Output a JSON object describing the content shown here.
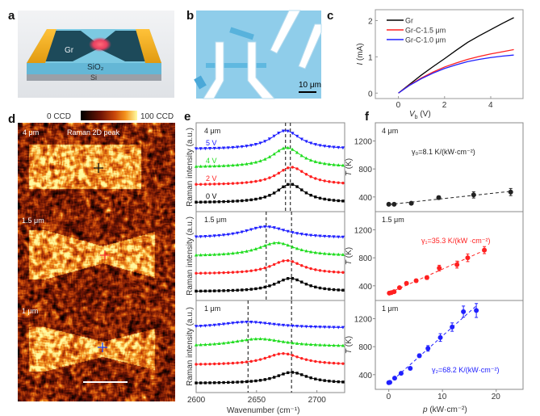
{
  "panel_labels": {
    "a": "a",
    "b": "b",
    "c": "c",
    "d": "d",
    "e": "e",
    "f": "f"
  },
  "panel_a": {
    "graphene_label": "Gr",
    "oxide_label": "SiO₂",
    "substrate_label": "Si"
  },
  "panel_b": {
    "scale_bar_label": "10 μm"
  },
  "panel_d": {
    "colorbar_min_label": "0 CCD",
    "colorbar_max_label": "100 CCD",
    "title": "Raman 2D peak",
    "device_labels": [
      "4 μm",
      "1.5 μm",
      "1 μm"
    ],
    "marker_colors": [
      "#111111",
      "#ff3030",
      "#2040ff"
    ]
  },
  "colors": {
    "0V": "#000000",
    "2V": "#ff2020",
    "4V": "#20dd20",
    "5V": "#2020ff",
    "gamma0": "#222222",
    "gamma1": "#ff2020",
    "gamma2": "#3030ff"
  },
  "chart_data": [
    {
      "panel": "c",
      "type": "line",
      "xlabel_var": "V",
      "xlabel_sub": "b",
      "xlabel_unit": " (V)",
      "ylabel_var": "I",
      "ylabel_unit": " (mA)",
      "xlim": [
        -1,
        5.4
      ],
      "ylim": [
        -0.15,
        2.3
      ],
      "xticks": [
        0,
        2,
        4
      ],
      "yticks": [
        0,
        1,
        2
      ],
      "legend_position": "top-left",
      "x": [
        0,
        0.5,
        1,
        1.5,
        2,
        2.5,
        3,
        3.5,
        4,
        4.5,
        5
      ],
      "series": [
        {
          "name": "Gr",
          "color": "#000000",
          "values": [
            0,
            0.25,
            0.5,
            0.73,
            0.95,
            1.18,
            1.4,
            1.58,
            1.75,
            1.92,
            2.08
          ]
        },
        {
          "name": "Gr-C-1.5 μm",
          "color": "#ff2020",
          "values": [
            0,
            0.23,
            0.42,
            0.58,
            0.72,
            0.83,
            0.93,
            1.01,
            1.08,
            1.14,
            1.2
          ]
        },
        {
          "name": "Gr-C-1.0 μm",
          "color": "#2020ff",
          "values": [
            0,
            0.22,
            0.4,
            0.55,
            0.68,
            0.78,
            0.87,
            0.93,
            0.98,
            1.02,
            1.05
          ]
        }
      ]
    },
    {
      "panel": "e",
      "type": "scatter-line",
      "xlabel": "Wavenumber (cm⁻¹)",
      "ylabel": "Raman intensity (a.u.)",
      "xlim": [
        2600,
        2723
      ],
      "xticks": [
        2600,
        2650,
        2700
      ],
      "ylim": [
        -0.5,
        4.5
      ],
      "subpanels": [
        {
          "label": "4 μm",
          "dashed_lines": [
            2674,
            2678
          ],
          "series": [
            {
              "name": "0 V",
              "color": "#000000",
              "marker": "square",
              "offset": 0,
              "center": 2678,
              "amplitude": 1.05,
              "hwhm": 14
            },
            {
              "name": "2 V",
              "color": "#ff2020",
              "marker": "circle",
              "offset": 1,
              "center": 2679,
              "amplitude": 1.0,
              "hwhm": 15
            },
            {
              "name": "4 V",
              "color": "#20dd20",
              "marker": "triangle-up",
              "offset": 2,
              "center": 2675,
              "amplitude": 1.1,
              "hwhm": 15
            },
            {
              "name": "5 V",
              "color": "#2020ff",
              "marker": "triangle-down",
              "offset": 3,
              "center": 2674,
              "amplitude": 1.05,
              "hwhm": 15
            }
          ]
        },
        {
          "label": "1.5 μm",
          "dashed_lines": [
            2658,
            2679
          ],
          "series": [
            {
              "name": "0 V",
              "color": "#000000",
              "marker": "square",
              "offset": 0,
              "center": 2678,
              "amplitude": 0.75,
              "hwhm": 15
            },
            {
              "name": "2 V",
              "color": "#ff2020",
              "marker": "circle",
              "offset": 1,
              "center": 2675,
              "amplitude": 0.75,
              "hwhm": 16
            },
            {
              "name": "4 V",
              "color": "#20dd20",
              "marker": "triangle-up",
              "offset": 2,
              "center": 2667,
              "amplitude": 0.75,
              "hwhm": 19
            },
            {
              "name": "5 V",
              "color": "#2020ff",
              "marker": "triangle-down",
              "offset": 3,
              "center": 2658,
              "amplitude": 0.65,
              "hwhm": 22
            }
          ]
        },
        {
          "label": "1 μm",
          "dashed_lines": [
            2643,
            2679
          ],
          "series": [
            {
              "name": "0 V",
              "color": "#000000",
              "marker": "square",
              "offset": 0,
              "center": 2679,
              "amplitude": 0.6,
              "hwhm": 16
            },
            {
              "name": "2 V",
              "color": "#ff2020",
              "marker": "circle",
              "offset": 1,
              "center": 2672,
              "amplitude": 0.62,
              "hwhm": 18
            },
            {
              "name": "4 V",
              "color": "#20dd20",
              "marker": "triangle-up",
              "offset": 2,
              "center": 2652,
              "amplitude": 0.42,
              "hwhm": 26
            },
            {
              "name": "5 V",
              "color": "#2020ff",
              "marker": "triangle-down",
              "offset": 3,
              "center": 2643,
              "amplitude": 0.33,
              "hwhm": 28
            }
          ]
        }
      ]
    },
    {
      "panel": "f",
      "type": "scatter",
      "xlabel_var": "p",
      "xlabel_unit": " (kW·cm⁻²)",
      "ylabel_var": "T",
      "ylabel_unit": " (K)",
      "xlim": [
        -2.5,
        25
      ],
      "ylim": [
        190,
        1460
      ],
      "xticks": [
        0,
        10,
        20
      ],
      "yticks": [
        400,
        800,
        1200
      ],
      "subpanels": [
        {
          "label": "4 μm",
          "annotation": "γ₀=8.1 K/(kW·cm⁻²)",
          "color": "#222222",
          "x": [
            0,
            1,
            4.2,
            9.3,
            15.8,
            22.7
          ],
          "y": [
            295,
            295,
            310,
            390,
            430,
            470
          ],
          "err": [
            10,
            10,
            20,
            25,
            45,
            50
          ]
        },
        {
          "label": "1.5 μm",
          "annotation": "γ₁=35.3 K/(kW ·cm⁻²)",
          "color": "#ff2020",
          "x": [
            0.1,
            0.5,
            1.0,
            2.0,
            3.3,
            5.1,
            7.1,
            9.4,
            12.7,
            14.7,
            17.8
          ],
          "y": [
            295,
            303,
            315,
            373,
            435,
            473,
            517,
            653,
            703,
            800,
            910
          ],
          "err": [
            10,
            10,
            12,
            15,
            15,
            20,
            25,
            40,
            50,
            55,
            50
          ]
        },
        {
          "label": "1 μm",
          "annotation": "γ₂=68.2 K/(kW·cm⁻²)",
          "color": "#2020ff",
          "x": [
            0,
            0.2,
            1.1,
            2.3,
            4.0,
            5.7,
            7.3,
            9.6,
            11.8,
            13.9,
            16.3
          ],
          "y": [
            285,
            290,
            350,
            420,
            490,
            670,
            775,
            930,
            1080,
            1300,
            1317
          ],
          "err": [
            10,
            10,
            15,
            20,
            20,
            25,
            40,
            55,
            60,
            80,
            100
          ]
        }
      ]
    }
  ]
}
